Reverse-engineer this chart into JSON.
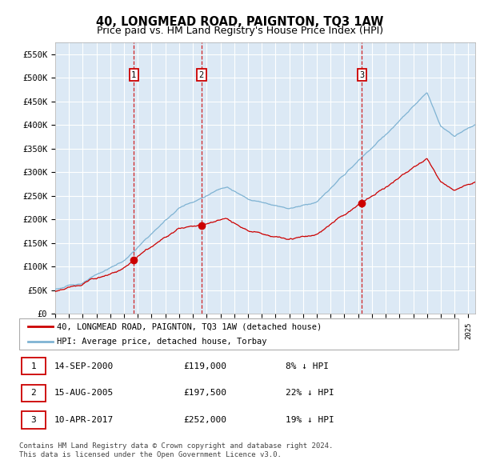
{
  "title": "40, LONGMEAD ROAD, PAIGNTON, TQ3 1AW",
  "subtitle": "Price paid vs. HM Land Registry's House Price Index (HPI)",
  "yticks": [
    0,
    50000,
    100000,
    150000,
    200000,
    250000,
    300000,
    350000,
    400000,
    450000,
    500000,
    550000
  ],
  "ytick_labels": [
    "£0",
    "£50K",
    "£100K",
    "£150K",
    "£200K",
    "£250K",
    "£300K",
    "£350K",
    "£400K",
    "£450K",
    "£500K",
    "£550K"
  ],
  "ylim": [
    0,
    575000
  ],
  "xlim_start": 1995.0,
  "xlim_end": 2025.5,
  "transactions": [
    {
      "date_num": 2000.71,
      "price": 119000,
      "label": "1"
    },
    {
      "date_num": 2005.62,
      "price": 197500,
      "label": "2"
    },
    {
      "date_num": 2017.27,
      "price": 252000,
      "label": "3"
    }
  ],
  "transaction_table": [
    {
      "num": "1",
      "date": "14-SEP-2000",
      "price": "£119,000",
      "hpi": "8% ↓ HPI"
    },
    {
      "num": "2",
      "date": "15-AUG-2005",
      "price": "£197,500",
      "hpi": "22% ↓ HPI"
    },
    {
      "num": "3",
      "date": "10-APR-2017",
      "price": "£252,000",
      "hpi": "19% ↓ HPI"
    }
  ],
  "legend_entries": [
    "40, LONGMEAD ROAD, PAIGNTON, TQ3 1AW (detached house)",
    "HPI: Average price, detached house, Torbay"
  ],
  "footer": "Contains HM Land Registry data © Crown copyright and database right 2024.\nThis data is licensed under the Open Government Licence v3.0.",
  "line_color_property": "#cc0000",
  "line_color_hpi": "#7fb3d3",
  "background_color": "#dce9f5",
  "grid_color": "#ffffff",
  "title_fontsize": 10.5,
  "subtitle_fontsize": 9
}
